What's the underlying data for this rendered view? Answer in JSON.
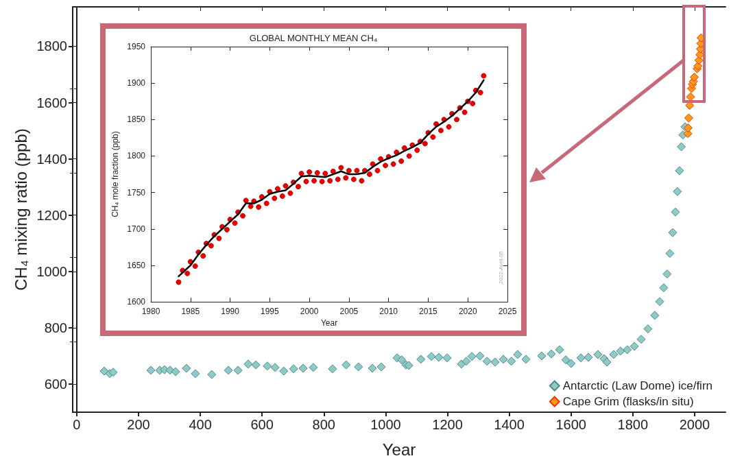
{
  "chart_data": [
    {
      "type": "scatter",
      "xlabel": "Year",
      "ylabel": "CH₄ mixing ratio (ppb)",
      "xlim": [
        -13,
        2100
      ],
      "ylim": [
        500,
        1940
      ],
      "xticks": [
        0,
        200,
        400,
        600,
        800,
        1000,
        1200,
        1400,
        1600,
        1800,
        2000
      ],
      "yticks": [
        600,
        800,
        1000,
        1200,
        1400,
        1600,
        1800
      ],
      "legend": "bottom right",
      "marker": "diamond",
      "series": [
        {
          "name": "Antarctic (Law Dome) ice/firn",
          "color": "#8fcac6",
          "x": [
            89,
            107,
            118,
            240,
            269,
            284,
            302,
            320,
            355,
            384,
            437,
            491,
            522,
            555,
            580,
            617,
            642,
            670,
            702,
            733,
            766,
            828,
            872,
            912,
            957,
            986,
            1037,
            1052,
            1066,
            1075,
            1114,
            1148,
            1172,
            1199,
            1245,
            1261,
            1279,
            1305,
            1328,
            1354,
            1381,
            1407,
            1427,
            1454,
            1505,
            1536,
            1563,
            1583,
            1600,
            1632,
            1656,
            1687,
            1707,
            1716,
            1738,
            1760,
            1782,
            1805,
            1827,
            1849,
            1871,
            1887,
            1900,
            1911,
            1920,
            1929,
            1938,
            1944,
            1951,
            1957,
            1962,
            1969
          ],
          "values": [
            646,
            637,
            642,
            649,
            649,
            651,
            649,
            644,
            656,
            637,
            634,
            649,
            649,
            671,
            668,
            664,
            659,
            646,
            654,
            656,
            659,
            654,
            668,
            661,
            656,
            661,
            693,
            686,
            668,
            666,
            688,
            698,
            695,
            693,
            671,
            681,
            698,
            700,
            681,
            678,
            688,
            681,
            705,
            688,
            700,
            707,
            722,
            686,
            673,
            693,
            695,
            705,
            690,
            678,
            705,
            717,
            722,
            734,
            759,
            796,
            844,
            893,
            942,
            991,
            1064,
            1138,
            1211,
            1284,
            1358,
            1443,
            1485,
            1514
          ]
        },
        {
          "name": "Cape Grim (flasks/in situ)",
          "color": "#ff9a1a",
          "x": [
            1978,
            1979,
            1981,
            1984,
            1987,
            1990,
            1993,
            1996,
            1999,
            2008,
            2011,
            2014,
            2017,
            2019,
            2020,
            2021
          ],
          "values": [
            1490,
            1510,
            1545,
            1590,
            1620,
            1650,
            1665,
            1675,
            1690,
            1720,
            1730,
            1750,
            1770,
            1790,
            1810,
            1830
          ]
        }
      ]
    },
    {
      "type": "scatter",
      "title": "GLOBAL MONTHLY MEAN CH₄",
      "xlabel": "Year",
      "ylabel": "CH₄ mole fraction (ppb)",
      "xlim": [
        1980,
        2025
      ],
      "ylim": [
        1600,
        1950
      ],
      "xticks": [
        1980,
        1985,
        1990,
        1995,
        2000,
        2005,
        2010,
        2015,
        2020,
        2025
      ],
      "yticks": [
        1600,
        1650,
        1700,
        1750,
        1800,
        1850,
        1900,
        1950
      ],
      "marker": "circle",
      "annotations": [
        "2022-April-05"
      ],
      "series": [
        {
          "color": "#e60000",
          "x": [
            1983.5,
            1984,
            1984.6,
            1985,
            1985.6,
            1986,
            1986.6,
            1987,
            1987.6,
            1988,
            1988.6,
            1989,
            1989.6,
            1990,
            1990.6,
            1991,
            1991.6,
            1992,
            1992.6,
            1993,
            1993.6,
            1994,
            1994.6,
            1995,
            1995.6,
            1996,
            1996.6,
            1997,
            1997.6,
            1998,
            1998.6,
            1999,
            1999.6,
            2000,
            2000.6,
            2001,
            2001.6,
            2002,
            2002.6,
            2003,
            2003.6,
            2004,
            2004.6,
            2005,
            2005.6,
            2006,
            2006.6,
            2007,
            2007.6,
            2008,
            2008.6,
            2009,
            2009.6,
            2010,
            2010.6,
            2011,
            2011.6,
            2012,
            2012.6,
            2013,
            2013.6,
            2014,
            2014.6,
            2015,
            2015.6,
            2016,
            2016.6,
            2017,
            2017.6,
            2018,
            2018.6,
            2019,
            2019.6,
            2020,
            2020.6,
            2021,
            2021.6,
            2022
          ],
          "values": [
            1627,
            1643,
            1639,
            1655,
            1649,
            1668,
            1663,
            1680,
            1677,
            1692,
            1687,
            1703,
            1699,
            1713,
            1708,
            1723,
            1718,
            1739,
            1731,
            1738,
            1730,
            1744,
            1735,
            1751,
            1742,
            1755,
            1745,
            1759,
            1749,
            1764,
            1758,
            1776,
            1765,
            1778,
            1766,
            1777,
            1765,
            1776,
            1766,
            1779,
            1768,
            1784,
            1770,
            1780,
            1768,
            1780,
            1766,
            1780,
            1775,
            1789,
            1780,
            1796,
            1787,
            1799,
            1789,
            1805,
            1793,
            1811,
            1800,
            1815,
            1808,
            1820,
            1817,
            1832,
            1826,
            1844,
            1835,
            1850,
            1840,
            1858,
            1850,
            1866,
            1860,
            1875,
            1872,
            1890,
            1887,
            1910
          ]
        },
        {
          "type": "line",
          "marker": "none",
          "color": "#000000",
          "x": [
            1983.5,
            1985,
            1986,
            1987,
            1988,
            1989,
            1990,
            1991,
            1992,
            1993,
            1994,
            1995,
            1996,
            1997,
            1998,
            1999,
            2000,
            2001,
            2002,
            2003,
            2004,
            2005,
            2006,
            2007,
            2008,
            2009,
            2010,
            2011,
            2012,
            2013,
            2014,
            2015,
            2016,
            2017,
            2018,
            2019,
            2020,
            2021,
            2022
          ],
          "values": [
            1635,
            1650,
            1665,
            1678,
            1690,
            1700,
            1710,
            1720,
            1735,
            1735,
            1740,
            1748,
            1751,
            1753,
            1762,
            1772,
            1773,
            1772,
            1771,
            1775,
            1779,
            1775,
            1775,
            1777,
            1785,
            1792,
            1797,
            1801,
            1807,
            1812,
            1818,
            1830,
            1840,
            1847,
            1855,
            1865,
            1875,
            1887,
            1904
          ]
        }
      ]
    }
  ]
}
